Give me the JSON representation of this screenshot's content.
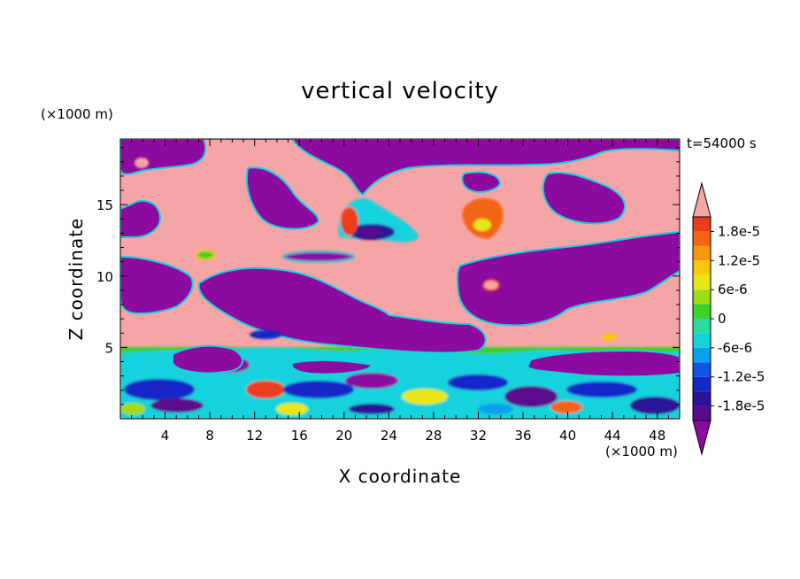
{
  "chart_data": {
    "type": "heatmap",
    "title": "vertical velocity",
    "xlabel": "X coordinate",
    "ylabel": "Z coordinate",
    "x_unit": "(×1000 m)",
    "y_unit": "(×1000 m)",
    "time_label": "t=54000 s",
    "xlim": [
      0,
      50
    ],
    "ylim": [
      0,
      19.6
    ],
    "x_ticks": [
      4,
      8,
      12,
      16,
      20,
      24,
      28,
      32,
      36,
      40,
      44,
      48
    ],
    "y_ticks": [
      5,
      10,
      15
    ],
    "colorbar": {
      "min": -2.1e-05,
      "max": 2.1e-05,
      "levels": [
        -2.1e-05,
        -1.8e-05,
        -1.5e-05,
        -1.2e-05,
        -9e-06,
        -6e-06,
        -3e-06,
        0,
        3e-06,
        6e-06,
        9e-06,
        1.2e-05,
        1.5e-05,
        1.8e-05,
        2.1e-05
      ],
      "colors": [
        "#5a0a8c",
        "#2a1396",
        "#1428c8",
        "#0f55e6",
        "#0aa0f0",
        "#14d2dc",
        "#28dca0",
        "#3cd228",
        "#a0dc14",
        "#e6e614",
        "#f5c80a",
        "#fa960a",
        "#f56414",
        "#eb3c1e",
        "#e61e1e"
      ],
      "under_color": "#8c0aa0",
      "over_color": "#f5a5a5",
      "tick_values": [
        1.8e-05,
        1.2e-05,
        6e-06,
        0,
        -6e-06,
        -1.2e-05,
        -1.8e-05
      ],
      "tick_labels": [
        "1.8e-5",
        "1.2e-5",
        "6e-6",
        "0",
        "-6e-6",
        "-1.2e-5",
        "-1.8e-5"
      ]
    }
  }
}
